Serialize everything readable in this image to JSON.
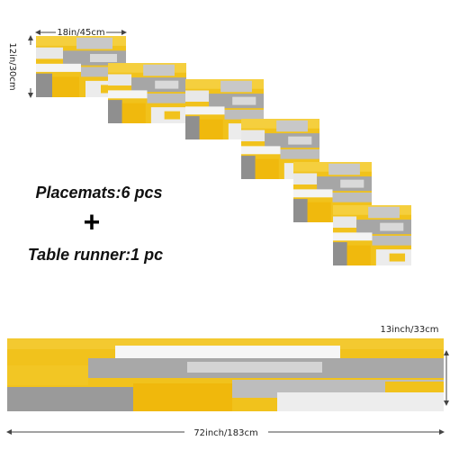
{
  "placemat_width": "18in/45cm",
  "placemat_height": "12in/30cm",
  "placemats": "Placemats:6 pcs",
  "plus": "+",
  "runner": "Table runner:1 pc",
  "runner_height": "13inch/33cm",
  "runner_width": "72inch/183cm"
}
